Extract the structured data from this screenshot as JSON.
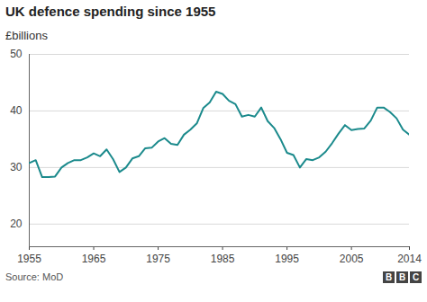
{
  "chart_data": {
    "type": "line",
    "title": "UK defence spending since 1955",
    "subtitle": "£billions",
    "source": "Source: MoD",
    "branding": "BBC",
    "color": "#1b8a8c",
    "grid": true,
    "x": [
      1955,
      1956,
      1957,
      1958,
      1959,
      1960,
      1961,
      1962,
      1963,
      1964,
      1965,
      1966,
      1967,
      1968,
      1969,
      1970,
      1971,
      1972,
      1973,
      1974,
      1975,
      1976,
      1977,
      1978,
      1979,
      1980,
      1981,
      1982,
      1983,
      1984,
      1985,
      1986,
      1987,
      1988,
      1989,
      1990,
      1991,
      1992,
      1993,
      1994,
      1995,
      1996,
      1997,
      1998,
      1999,
      2000,
      2001,
      2002,
      2003,
      2004,
      2005,
      2006,
      2007,
      2008,
      2009,
      2010,
      2011,
      2012,
      2013,
      2014
    ],
    "values": [
      30.8,
      31.3,
      28.3,
      28.3,
      28.4,
      30.0,
      30.8,
      31.3,
      31.3,
      31.8,
      32.5,
      32.0,
      33.2,
      31.5,
      29.2,
      30.0,
      31.6,
      32.0,
      33.4,
      33.5,
      34.6,
      35.2,
      34.2,
      34.0,
      35.8,
      36.7,
      37.8,
      40.5,
      41.5,
      43.4,
      43.0,
      41.8,
      41.2,
      39.0,
      39.3,
      39.0,
      40.6,
      38.2,
      37.0,
      35.0,
      32.6,
      32.2,
      30.0,
      31.5,
      31.3,
      31.8,
      32.8,
      34.3,
      36.0,
      37.5,
      36.6,
      36.8,
      36.9,
      38.3,
      40.6,
      40.6,
      39.8,
      38.7,
      36.7,
      35.8
    ],
    "xlim": [
      1955,
      2014
    ],
    "xticks": [
      1955,
      1965,
      1975,
      1985,
      1995,
      2005,
      2014
    ],
    "ylim": [
      16,
      50
    ],
    "yticks": [
      20,
      30,
      40,
      50
    ]
  }
}
